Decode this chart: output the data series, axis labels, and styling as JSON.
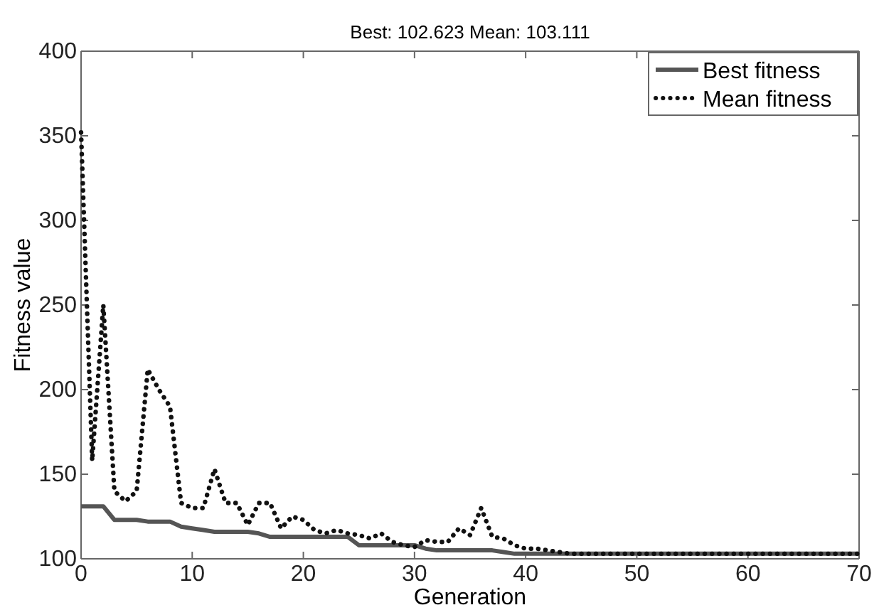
{
  "chart_data": {
    "type": "line",
    "title": "Best: 102.623 Mean: 103.111",
    "xlabel": "Generation",
    "ylabel": "Fitness value",
    "x": [
      0,
      1,
      2,
      3,
      4,
      5,
      6,
      7,
      8,
      9,
      10,
      11,
      12,
      13,
      14,
      15,
      16,
      17,
      18,
      19,
      20,
      21,
      22,
      23,
      24,
      25,
      26,
      27,
      28,
      29,
      30,
      31,
      32,
      33,
      34,
      35,
      36,
      37,
      38,
      39,
      40,
      41,
      42,
      43,
      44,
      45,
      46,
      47,
      48,
      49,
      50,
      51,
      52,
      53,
      54,
      55,
      56,
      57,
      58,
      59,
      60,
      61,
      62,
      63,
      64,
      65,
      66,
      67,
      68,
      69,
      70
    ],
    "series": [
      {
        "name": "Best fitness",
        "color": "#555555",
        "line_style": "solid",
        "values": [
          131,
          131,
          131,
          123,
          123,
          123,
          122,
          122,
          122,
          119,
          118,
          117,
          116,
          116,
          116,
          116,
          115,
          113,
          113,
          113,
          113,
          113,
          113,
          113,
          113,
          108,
          108,
          108,
          108,
          108,
          108,
          106,
          105,
          105,
          105,
          105,
          105,
          105,
          104,
          103,
          103,
          103,
          103,
          103,
          103,
          103,
          103,
          103,
          103,
          103,
          103,
          103,
          103,
          103,
          103,
          103,
          103,
          103,
          103,
          103,
          103,
          103,
          103,
          103,
          103,
          103,
          103,
          103,
          103,
          103,
          103
        ]
      },
      {
        "name": "Mean fitness",
        "color": "#111111",
        "line_style": "dotted",
        "values": [
          352,
          158,
          250,
          140,
          134,
          140,
          212,
          200,
          190,
          133,
          130,
          130,
          153,
          133,
          133,
          120,
          133,
          133,
          118,
          125,
          123,
          117,
          115,
          117,
          115,
          114,
          112,
          115,
          110,
          108,
          107,
          111,
          110,
          110,
          118,
          114,
          130,
          113,
          112,
          108,
          106,
          106,
          105,
          104,
          103,
          103,
          103,
          103,
          103,
          103,
          103,
          103,
          103,
          103,
          103,
          103,
          103,
          103,
          103,
          103,
          103,
          103,
          103,
          103,
          103,
          103,
          103,
          103,
          103,
          103,
          103
        ]
      }
    ],
    "xlim": [
      0,
      70
    ],
    "xticks": [
      0,
      10,
      20,
      30,
      40,
      50,
      60,
      70
    ],
    "ylim": [
      100,
      400
    ],
    "yticks": [
      100,
      150,
      200,
      250,
      300,
      350,
      400
    ],
    "legend": "top right"
  }
}
